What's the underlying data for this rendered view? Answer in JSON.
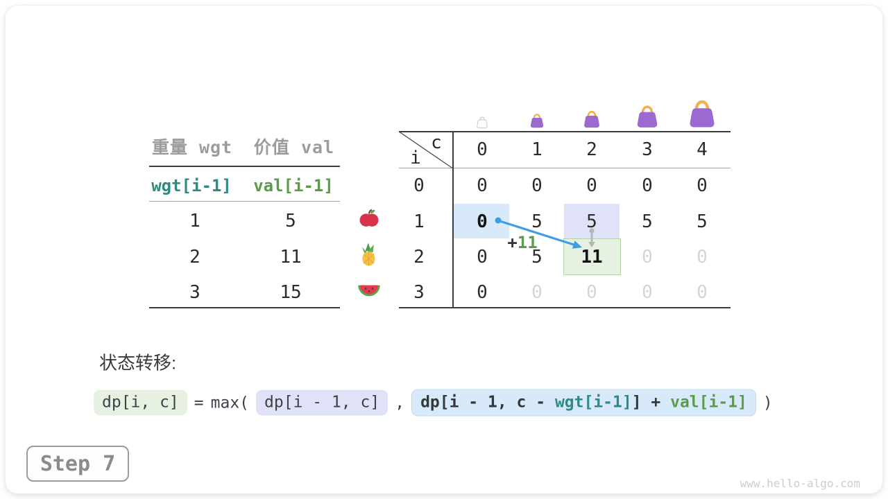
{
  "items_table": {
    "col_headers": [
      "重量 wgt",
      "价值 val"
    ],
    "sub_headers": [
      "wgt[i-1]",
      "val[i-1]"
    ],
    "rows": [
      {
        "wgt": "1",
        "val": "5",
        "icon": "apple-icon"
      },
      {
        "wgt": "2",
        "val": "11",
        "icon": "pineapple-icon"
      },
      {
        "wgt": "3",
        "val": "15",
        "icon": "watermelon-icon"
      }
    ]
  },
  "dp_table": {
    "corner_row_var": "i",
    "corner_col_var": "c",
    "col_headers": [
      "0",
      "1",
      "2",
      "3",
      "4"
    ],
    "row_headers": [
      "0",
      "1",
      "2",
      "3"
    ],
    "capacity_icons": [
      "empty-bag-icon",
      "bag-icon-1",
      "bag-icon-2",
      "bag-icon-3",
      "bag-icon-4"
    ],
    "cells": [
      [
        {
          "v": "0"
        },
        {
          "v": "0"
        },
        {
          "v": "0"
        },
        {
          "v": "0"
        },
        {
          "v": "0"
        }
      ],
      [
        {
          "v": "0",
          "bold": true,
          "hl": "blue"
        },
        {
          "v": "5"
        },
        {
          "v": "5",
          "hl": "lavender"
        },
        {
          "v": "5"
        },
        {
          "v": "5"
        }
      ],
      [
        {
          "v": "0"
        },
        {
          "v": "5"
        },
        {
          "v": "11",
          "bold": true,
          "hl": "green"
        },
        {
          "v": "0",
          "muted": true
        },
        {
          "v": "0",
          "muted": true
        }
      ],
      [
        {
          "v": "0"
        },
        {
          "v": "0",
          "muted": true
        },
        {
          "v": "0",
          "muted": true
        },
        {
          "v": "0",
          "muted": true
        },
        {
          "v": "0",
          "muted": true
        }
      ]
    ]
  },
  "annotation": {
    "plus": "+",
    "value": "11"
  },
  "transition": {
    "label": "状态转移:",
    "lhs": "dp[i, c]",
    "equals": "=",
    "max_open": "max(",
    "arg1": "dp[i - 1, c]",
    "comma": ",",
    "arg2_prefix": "dp[i - 1, c - ",
    "arg2_wgt": "wgt[i-1]",
    "arg2_mid": "] + ",
    "arg2_val": "val[i-1]",
    "close": ")"
  },
  "step_badge": "Step 7",
  "watermark": "www.hello-algo.com",
  "colors": {
    "accent_blue": "#3f9de8",
    "arrow_gray": "#b4b4b4",
    "teal": "#2e8b82",
    "green": "#5a9c4a",
    "muted_text": "#d4d4d4",
    "highlight_blue": "#d8eaf9",
    "highlight_lavender": "#e0e3f7",
    "highlight_green": "#e7f1e2",
    "highlight_green_border": "#b2d2a8",
    "bag_purple": "#9b69d0",
    "bag_handle": "#f2b04f"
  }
}
